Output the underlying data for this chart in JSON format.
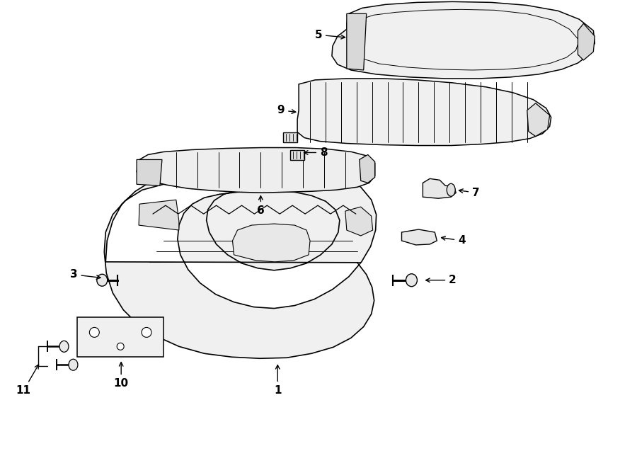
{
  "bg_color": "#ffffff",
  "line_color": "#000000",
  "lw": 1.1,
  "fig_width": 9.0,
  "fig_height": 6.61,
  "dpi": 100
}
